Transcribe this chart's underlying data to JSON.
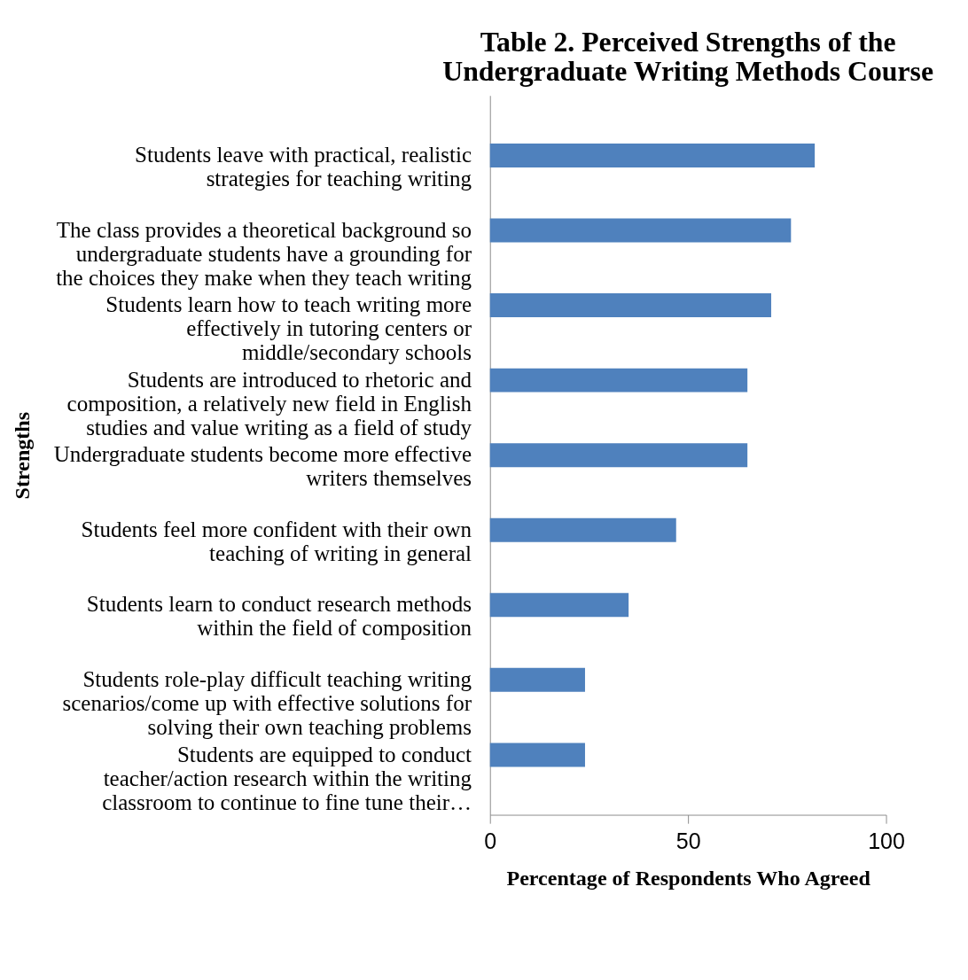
{
  "chart_data": {
    "type": "bar",
    "orientation": "horizontal",
    "title": "Table 2. Perceived Strengths of the Undergraduate Writing Methods Course",
    "xlabel": "Percentage of Respondents  Who Agreed",
    "ylabel": "Strengths",
    "categories": [
      "Students leave with practical, realistic strategies for teaching writing",
      "The class provides a theoretical background so undergraduate students have a grounding for the choices they make when they teach writing",
      "Students learn how to teach writing more effectively in tutoring centers or middle/secondary schools",
      "Students are introduced to rhetoric and composition, a relatively new field in English studies and value writing as a field of study",
      "Undergraduate students become more effective writers themselves",
      "Students feel more confident with their own teaching of writing in general",
      "Students learn to conduct research methods within the field of composition",
      "Students role-play difficult teaching writing scenarios/come up with effective solutions for solving their own teaching problems",
      "Students are equipped to conduct teacher/action research within the writing classroom to continue to fine tune their…"
    ],
    "values": [
      82,
      76,
      71,
      65,
      65,
      47,
      35,
      24,
      24
    ],
    "color": "#4f81bd",
    "xlim": [
      0,
      100
    ],
    "xticks": [
      0,
      50,
      100
    ],
    "grid": false,
    "legend": false
  }
}
